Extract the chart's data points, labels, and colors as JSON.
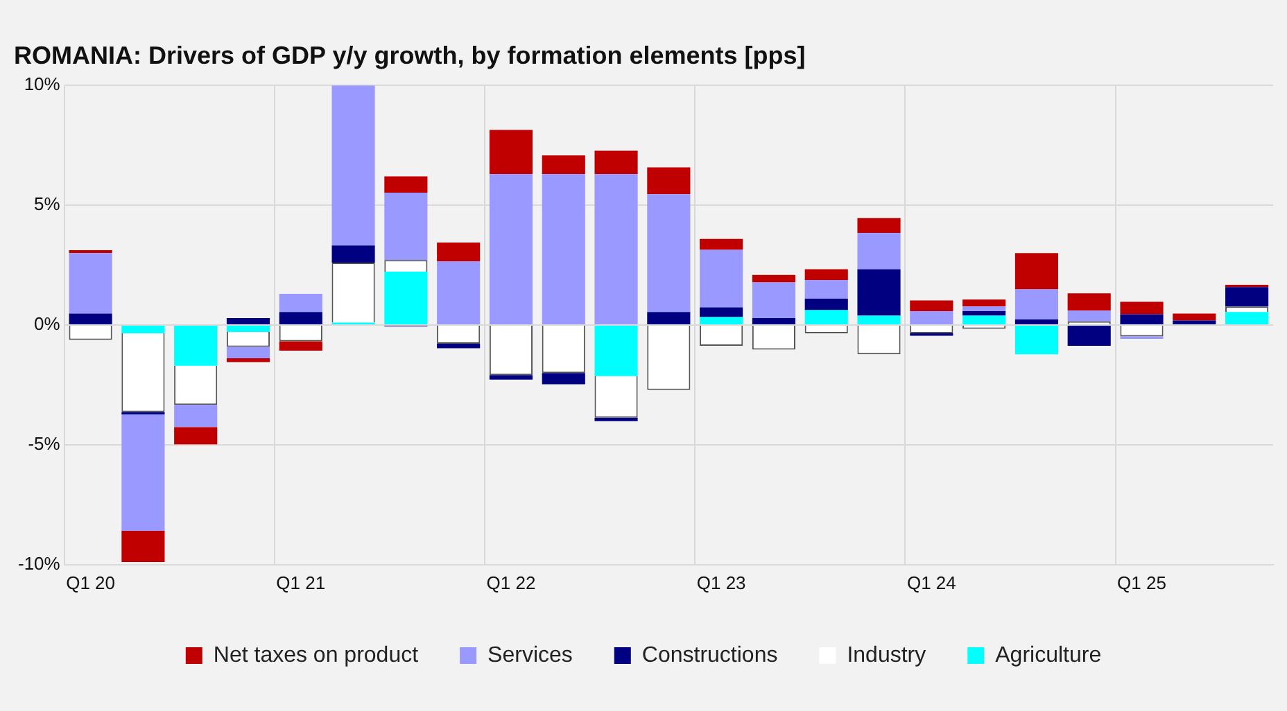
{
  "chart_data": {
    "type": "bar",
    "title": "ROMANIA: Drivers of GDP y/y growth, by formation elements [pps]",
    "categories": [
      "Q1 20",
      null,
      null,
      null,
      "Q1 21",
      null,
      null,
      null,
      "Q1 22",
      null,
      null,
      null,
      "Q1 23",
      null,
      null,
      null,
      "Q1 24",
      null,
      null,
      null,
      "Q1 25",
      null,
      null
    ],
    "stacked": true,
    "series": [
      {
        "name": "Agriculture",
        "color": "#00ffff",
        "values": [
          null,
          -0.35,
          -1.7,
          -0.29,
          null,
          0.1,
          2.23,
          null,
          null,
          null,
          -2.13,
          null,
          0.33,
          null,
          0.62,
          0.39,
          null,
          0.39,
          -1.22,
          null,
          null,
          null,
          0.54
        ]
      },
      {
        "name": "Industry",
        "color": "#ffffff",
        "values": [
          -0.62,
          -3.28,
          -1.63,
          -0.62,
          -0.68,
          2.5,
          0.48,
          -0.78,
          -2.09,
          -2.0,
          -1.74,
          -2.71,
          -0.87,
          -1.03,
          -0.35,
          -1.22,
          -0.35,
          -0.16,
          null,
          0.15,
          -0.48,
          null,
          0.23
        ]
      },
      {
        "name": "Constructions",
        "color": "#000080",
        "values": [
          0.48,
          -0.1,
          null,
          0.29,
          0.54,
          0.72,
          -0.06,
          -0.19,
          -0.19,
          -0.47,
          -0.14,
          0.54,
          0.41,
          0.29,
          0.48,
          1.94,
          -0.1,
          0.19,
          0.23,
          -0.87,
          0.45,
          0.19,
          0.81
        ]
      },
      {
        "name": "Services",
        "color": "#9999ff",
        "values": [
          2.52,
          -4.86,
          -0.93,
          -0.48,
          0.76,
          6.68,
          2.81,
          2.66,
          6.3,
          6.3,
          6.3,
          4.92,
          2.4,
          1.49,
          0.78,
          1.51,
          0.58,
          0.19,
          1.26,
          0.45,
          -0.1,
          null,
          null
        ]
      },
      {
        "name": "Net taxes on product",
        "color": "#c00000",
        "values": [
          0.12,
          -1.3,
          -0.72,
          -0.16,
          -0.39,
          null,
          0.68,
          0.78,
          1.84,
          0.78,
          0.97,
          1.12,
          0.45,
          0.31,
          0.45,
          0.62,
          0.45,
          0.29,
          1.51,
          0.72,
          0.52,
          0.29,
          0.1
        ]
      }
    ],
    "ylim": [
      -10,
      10
    ],
    "yticks": [
      {
        "value": -10,
        "label": "-10%"
      },
      {
        "value": -5,
        "label": "-5%"
      },
      {
        "value": 0,
        "label": "0%"
      },
      {
        "value": 5,
        "label": "5%"
      },
      {
        "value": 10,
        "label": "10%"
      }
    ],
    "grid": true,
    "legend": "bottom"
  }
}
